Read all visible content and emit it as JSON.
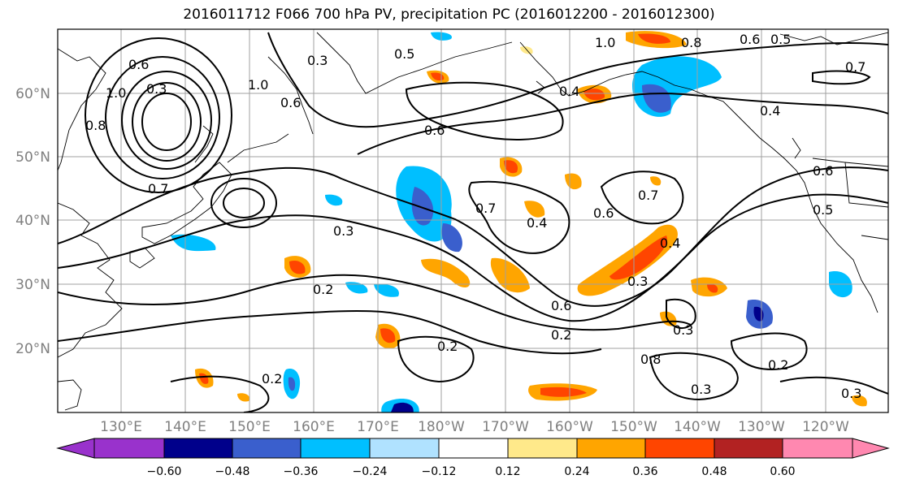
{
  "title": "2016011712 F066 700 hPa PV, precipitation PC (2016012200 - 2016012300)",
  "map": {
    "lat_labels": [
      "60°N",
      "50°N",
      "40°N",
      "30°N",
      "20°N"
    ],
    "lon_labels": [
      "130°E",
      "140°E",
      "150°E",
      "160°E",
      "170°E",
      "180°W",
      "170°W",
      "160°W",
      "150°W",
      "140°W",
      "130°W",
      "120°W"
    ],
    "contour_labels": [
      "0.6",
      "0.3",
      "1.0",
      "0.8",
      "0.7",
      "0.3",
      "0.5",
      "1.0",
      "0.6",
      "1.0",
      "0.8",
      "0.6",
      "0.5",
      "0.7",
      "0.4",
      "0.6",
      "0.4",
      "0.7",
      "0.7",
      "0.4",
      "0.6",
      "0.4",
      "0.3",
      "0.2",
      "0.6",
      "0.3",
      "0.2",
      "0.8",
      "0.2",
      "0.3",
      "0.3",
      "0.2",
      "0.2",
      "0.5",
      "0.6",
      "0.3"
    ],
    "colors": {
      "coast": "#000000",
      "grid": "#a0a0a0",
      "contour": "#000000"
    }
  },
  "colorbar": {
    "ticks": [
      "−0.60",
      "−0.48",
      "−0.36",
      "−0.24",
      "−0.12",
      "0.12",
      "0.24",
      "0.36",
      "0.48",
      "0.60"
    ],
    "colors": [
      "#9932cc",
      "#00008b",
      "#3a5fcd",
      "#00bfff",
      "#b0e2ff",
      "#ffffff",
      "#ffe98a",
      "#ffa500",
      "#ff4500",
      "#b22222",
      "#ff88b0"
    ]
  }
}
